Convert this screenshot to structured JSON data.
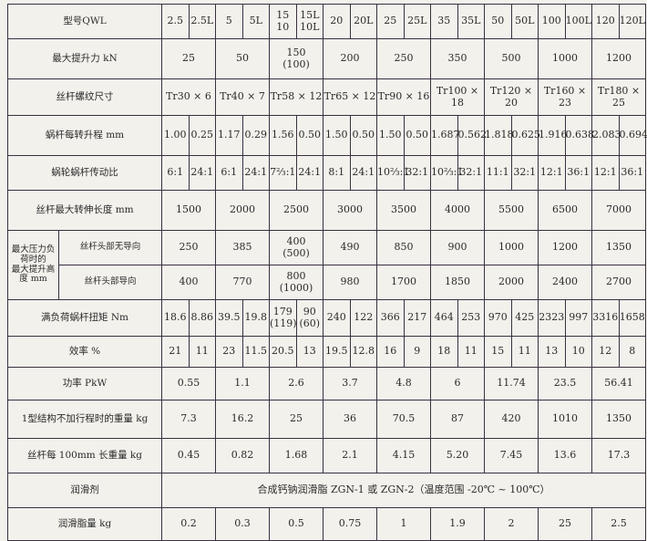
{
  "table": {
    "model": {
      "label": "型号QWL",
      "values": [
        "2.5",
        "2.5L",
        "5",
        "5L",
        "15\n10",
        "15L\n10L",
        "20",
        "20L",
        "25",
        "25L",
        "35",
        "35L",
        "50",
        "50L",
        "100",
        "100L",
        "120",
        "120L"
      ]
    },
    "max_lift": {
      "label": "最大提升力 kN",
      "values": [
        "25",
        "50",
        "150\n(100)",
        "200",
        "250",
        "350",
        "500",
        "1000",
        "1200"
      ]
    },
    "thread": {
      "label": "丝杆螺纹尺寸",
      "values": [
        "Tr30 × 6",
        "Tr40 × 7",
        "Tr58 × 12",
        "Tr65 × 12",
        "Tr90 × 16",
        "Tr100 × 18",
        "Tr120 × 20",
        "Tr160 × 23",
        "Tr180 × 25"
      ]
    },
    "lead": {
      "label": "蜗杆每转升程 mm",
      "values": [
        "1.00",
        "0.25",
        "1.17",
        "0.29",
        "1.56",
        "0.50",
        "1.50",
        "0.50",
        "1.50",
        "0.50",
        "1.687",
        "0.562",
        "1.818",
        "0.625",
        "1.916",
        "0.638",
        "2.083",
        "0.694"
      ]
    },
    "ratio": {
      "label": "蜗轮蜗杆传动比",
      "values": [
        "6:1",
        "24:1",
        "6:1",
        "24:1",
        "7⅔:1",
        "24:1",
        "8:1",
        "24:1",
        "10⅔:1",
        "32:1",
        "10⅔:1",
        "32:1",
        "11:1",
        "32:1",
        "12:1",
        "36:1",
        "12:1",
        "36:1"
      ]
    },
    "max_length": {
      "label": "丝杆最大转伸长度 mm",
      "values": [
        "1500",
        "2000",
        "2500",
        "3000",
        "3500",
        "4000",
        "5500",
        "6500",
        "7000"
      ]
    },
    "pressure_height": {
      "label": "最大压力负荷时的\n最大提升高度 mm",
      "no_guide": {
        "label": "丝杆头部无导向",
        "values": [
          "250",
          "385",
          "400\n(500)",
          "490",
          "850",
          "900",
          "1000",
          "1200",
          "1350"
        ]
      },
      "guide": {
        "label": "丝杆头部导向",
        "values": [
          "400",
          "770",
          "800\n(1000)",
          "980",
          "1700",
          "1850",
          "2000",
          "2400",
          "2700"
        ]
      }
    },
    "torque": {
      "label": "满负荷蜗杆扭矩  Nm",
      "values": [
        "18.6",
        "8.86",
        "39.5",
        "19.8",
        "179\n(119)",
        "90\n(60)",
        "240",
        "122",
        "366",
        "217",
        "464",
        "253",
        "970",
        "425",
        "2323",
        "997",
        "3316",
        "1658"
      ]
    },
    "efficiency": {
      "label": "效率 %",
      "values": [
        "21",
        "11",
        "23",
        "11.5",
        "20.5",
        "13",
        "19.5",
        "12.8",
        "16",
        "9",
        "18",
        "11",
        "15",
        "11",
        "13",
        "10",
        "12",
        "8"
      ]
    },
    "power": {
      "label": "功率 PkW",
      "values": [
        "0.55",
        "1.1",
        "2.6",
        "3.7",
        "4.8",
        "6",
        "11.74",
        "23.5",
        "56.41"
      ]
    },
    "weight": {
      "label": "1型结构不加行程时的重量 kg",
      "values": [
        "7.3",
        "16.2",
        "25",
        "36",
        "70.5",
        "87",
        "420",
        "1010",
        "1350"
      ]
    },
    "screw_weight": {
      "label": "丝杆每 100mm 长重量 kg",
      "values": [
        "0.45",
        "0.82",
        "1.68",
        "2.1",
        "4.15",
        "5.20",
        "7.45",
        "13.6",
        "17.3"
      ]
    },
    "lubricant": {
      "label": "润滑剂",
      "value": "合成钙钠润滑脂 ZGN-1 或 ZGN-2（温度范围 -20℃ ~ 100℃）"
    },
    "grease": {
      "label": "润滑脂量 kg",
      "values": [
        "0.2",
        "0.3",
        "0.5",
        "0.75",
        "1",
        "1.9",
        "2",
        "25",
        "2.5"
      ]
    }
  }
}
